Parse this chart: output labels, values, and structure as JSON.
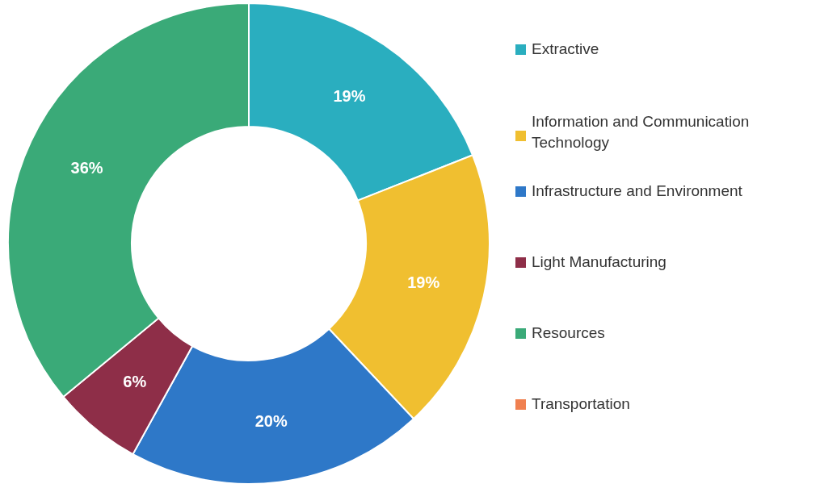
{
  "chart_data": {
    "type": "donut",
    "categories": [
      "Extractive",
      "Information and Communication Technology",
      "Infrastructure and Environment",
      "Light Manufacturing",
      "Resources",
      "Transportation"
    ],
    "values": [
      19,
      19,
      20,
      6,
      36,
      0
    ],
    "colors": [
      "#2aaebf",
      "#f0bf30",
      "#2e78c8",
      "#8e2e48",
      "#3aaa78",
      "#f08050"
    ],
    "value_labels": [
      "19%",
      "19%",
      "20%",
      "6%",
      "36%",
      null
    ],
    "legend": "right"
  }
}
